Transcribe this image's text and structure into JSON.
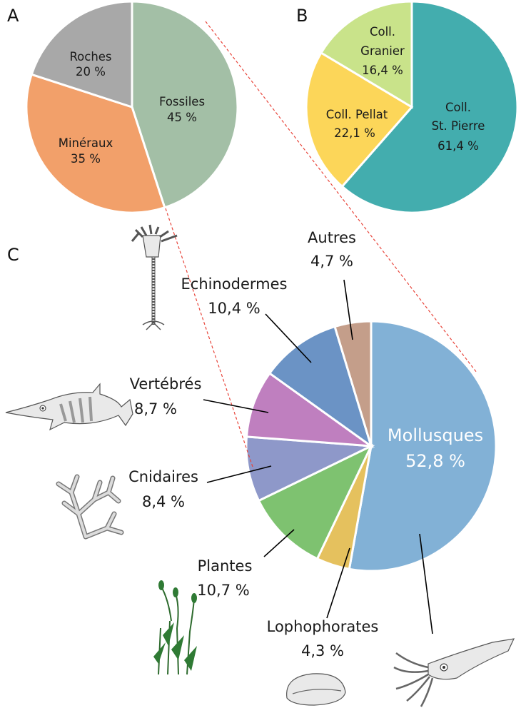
{
  "panels": {
    "a": "A",
    "b": "B",
    "c": "C"
  },
  "chart_data": [
    {
      "type": "pie",
      "panel": "A",
      "slices": [
        {
          "label": "Fossiles",
          "value": 45,
          "text": "45 %",
          "color": "#a3bfa6"
        },
        {
          "label": "Minéraux",
          "value": 35,
          "text": "35 %",
          "color": "#f2a06a"
        },
        {
          "label": "Roches",
          "value": 20,
          "text": "20 %",
          "color": "#a8a8a8"
        }
      ]
    },
    {
      "type": "pie",
      "panel": "B",
      "slices": [
        {
          "label": "Coll. St. Pierre",
          "value": 61.4,
          "text": "61,4 %",
          "color": "#43adae"
        },
        {
          "label": "Coll. Pellat",
          "value": 22.1,
          "text": "22,1 %",
          "color": "#fcd659"
        },
        {
          "label": "Coll. Granier",
          "value": 16.4,
          "text": "16,4 %",
          "color": "#c9e38a"
        }
      ]
    },
    {
      "type": "pie",
      "panel": "C",
      "slices": [
        {
          "label": "Mollusques",
          "value": 52.8,
          "text": "52,8 %",
          "color": "#82b1d6"
        },
        {
          "label": "Lophophorates",
          "value": 4.3,
          "text": "4,3 %",
          "color": "#e5c15e"
        },
        {
          "label": "Plantes",
          "value": 10.7,
          "text": "10,7 %",
          "color": "#7ec270"
        },
        {
          "label": "Cnidaires",
          "value": 8.4,
          "text": "8,4 %",
          "color": "#8e98c9"
        },
        {
          "label": "Vertébrés",
          "value": 8.7,
          "text": "8,7 %",
          "color": "#bf7fbf"
        },
        {
          "label": "Echinodermes",
          "value": 10.4,
          "text": "10,4 %",
          "color": "#6b93c5"
        },
        {
          "label": "Autres",
          "value": 4.7,
          "text": "4,7 %",
          "color": "#c49e8a"
        }
      ]
    }
  ],
  "labels": {
    "a_roches": "Roches",
    "a_roches_pct": "20 %",
    "a_mineraux": "Minéraux",
    "a_mineraux_pct": "35 %",
    "a_fossiles": "Fossiles",
    "a_fossiles_pct": "45 %",
    "b_granier_1": "Coll.",
    "b_granier_2": "Granier",
    "b_granier_pct": "16,4 %",
    "b_pellat": "Coll. Pellat",
    "b_pellat_pct": "22,1 %",
    "b_stpierre_1": "Coll.",
    "b_stpierre_2": "St. Pierre",
    "b_stpierre_pct": "61,4 %",
    "c_autres": "Autres",
    "c_autres_pct": "4,7 %",
    "c_echino": "Echinodermes",
    "c_echino_pct": "10,4 %",
    "c_vert": "Vertébrés",
    "c_vert_pct": "8,7 %",
    "c_cnid": "Cnidaires",
    "c_cnid_pct": "8,4 %",
    "c_plantes": "Plantes",
    "c_plantes_pct": "10,7 %",
    "c_loph": "Lophophorates",
    "c_loph_pct": "4,3 %",
    "c_moll": "Mollusques",
    "c_moll_pct": "52,8 %"
  }
}
